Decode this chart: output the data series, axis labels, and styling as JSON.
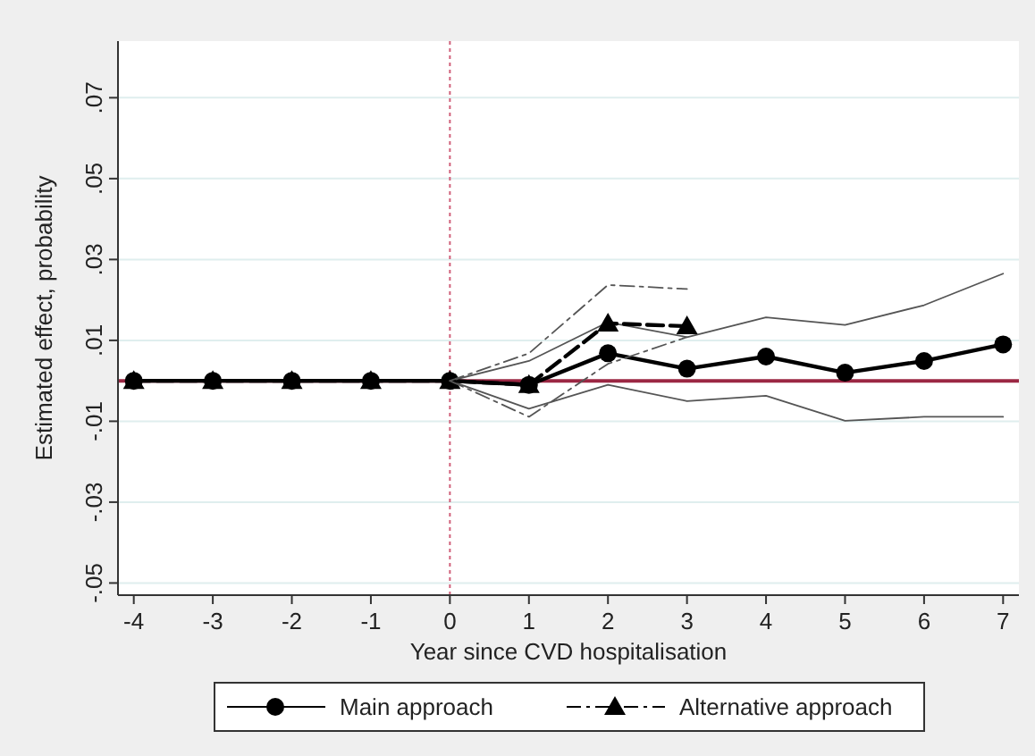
{
  "chart_data": {
    "type": "line",
    "xlabel": "Year since CVD hospitalisation",
    "ylabel": "Estimated effect, probability",
    "x": [
      -4,
      -3,
      -2,
      -1,
      0,
      1,
      2,
      3,
      4,
      5,
      6,
      7
    ],
    "series": [
      {
        "name": "Main approach",
        "color": "#000000",
        "marker": "circle",
        "line_style": "solid",
        "values": [
          0,
          0,
          0,
          0,
          0,
          -0.001,
          0.0068,
          0.003,
          0.006,
          0.002,
          0.0049,
          0.009
        ]
      },
      {
        "color": "#555555",
        "marker": "none",
        "line_style": "solid",
        "x": [
          0,
          1,
          2,
          3,
          4,
          5,
          6,
          7
        ],
        "values": [
          0,
          0.0049,
          0.0145,
          0.0108,
          0.0157,
          0.0138,
          0.0187,
          0.0265
        ]
      },
      {
        "color": "#555555",
        "marker": "none",
        "line_style": "solid",
        "x": [
          0,
          1,
          2,
          3,
          4,
          5,
          6,
          7
        ],
        "values": [
          0,
          -0.0069,
          -0.001,
          -0.005,
          -0.0037,
          -0.0099,
          -0.0089,
          -0.0089
        ]
      },
      {
        "name": "Alternative approach",
        "color": "#000000",
        "marker": "triangle",
        "line_style": "dashed",
        "x": [
          -4,
          -3,
          -2,
          -1,
          0,
          1,
          2,
          3
        ],
        "values": [
          0,
          0,
          0,
          0,
          0,
          -0.001,
          0.0142,
          0.0135
        ]
      },
      {
        "color": "#555555",
        "marker": "none",
        "line_style": "dashed",
        "x": [
          0,
          1,
          2,
          3
        ],
        "values": [
          0,
          0.0068,
          0.0237,
          0.0227
        ]
      },
      {
        "color": "#555555",
        "marker": "none",
        "line_style": "dashed",
        "x": [
          0,
          1,
          2,
          3
        ],
        "values": [
          0,
          -0.0089,
          0.0042,
          0.0108
        ]
      }
    ],
    "xlim": [
      -4.2,
      7.2
    ],
    "xticks": [
      -4,
      -3,
      -2,
      -1,
      0,
      1,
      2,
      3,
      4,
      5,
      6,
      7
    ],
    "ylim": [
      -0.053,
      0.084
    ],
    "yticks": [
      {
        "value": -0.05,
        "label": "-.05"
      },
      {
        "value": -0.03,
        "label": "-.03"
      },
      {
        "value": -0.01,
        "label": "-.01"
      },
      {
        "value": 0.01,
        "label": ".01"
      },
      {
        "value": 0.03,
        "label": ".03"
      },
      {
        "value": 0.05,
        "label": ".05"
      },
      {
        "value": 0.07,
        "label": ".07"
      }
    ],
    "ref_lines": [
      {
        "axis": "y",
        "value": 0,
        "color": "#9b2743",
        "line_style": "solid"
      },
      {
        "axis": "x",
        "value": 0,
        "color": "#d0607a",
        "line_style": "dotted"
      }
    ],
    "grid": "y",
    "legend": "bottom"
  }
}
